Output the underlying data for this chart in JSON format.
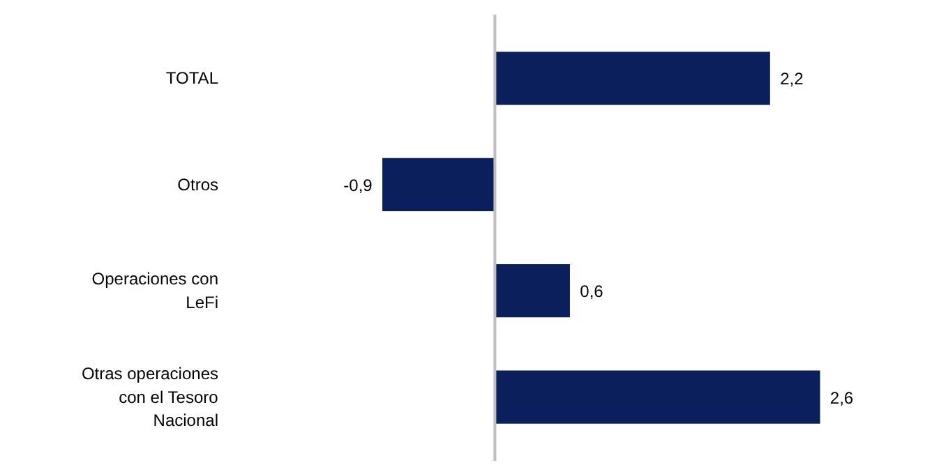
{
  "chart_data": {
    "type": "bar",
    "orientation": "horizontal",
    "categories": [
      "TOTAL",
      "Otros",
      "Operaciones con LeFi",
      "Otras operaciones con el Tesoro Nacional"
    ],
    "values": [
      2.2,
      -0.9,
      0.6,
      2.6
    ],
    "value_labels": [
      "2,2",
      "-0,9",
      "0,6",
      "2,6"
    ],
    "color": "#0b1f5c"
  }
}
